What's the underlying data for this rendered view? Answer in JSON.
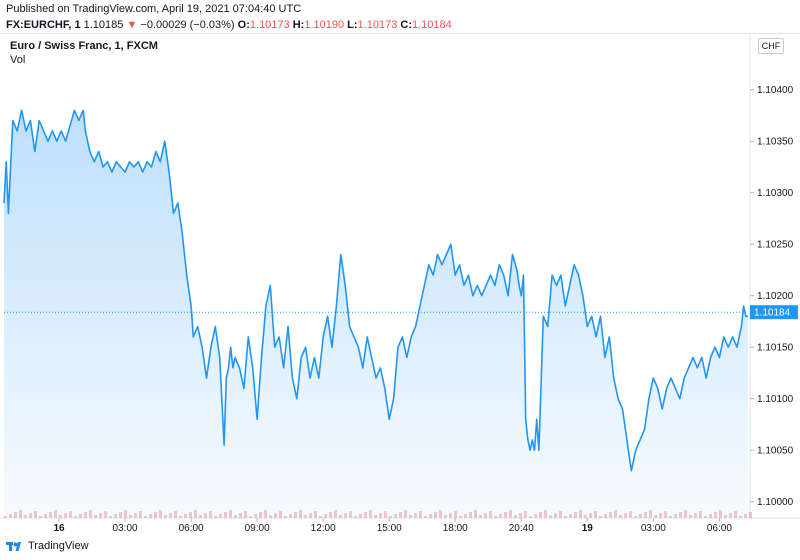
{
  "header": {
    "published": "Published on TradingView.com, April 19, 2021 07:04:40 UTC",
    "symbol": "FX:EURCHF, 1",
    "last": "1.10185",
    "change_arrow": "▼",
    "change": "−0.00029 (−0.03%)",
    "o_label": "O:",
    "o_value": "1.10173",
    "h_label": "H:",
    "h_value": "1.10190",
    "l_label": "L:",
    "l_value": "1.10173",
    "c_label": "C:",
    "c_value": "1.10184"
  },
  "legend": {
    "title": "Euro / Swiss Franc, 1, FXCM",
    "vol": "Vol",
    "currency": "CHF"
  },
  "footer": {
    "brand": "TradingView"
  },
  "colors": {
    "line": "#2196f3",
    "fill": "#bbdefb",
    "price_tag": "#2196f3",
    "volume": "#ef9a9a"
  },
  "chart_data": {
    "type": "area",
    "title": "Euro / Swiss Franc, 1, FXCM",
    "x_ticks": [
      {
        "t": 1.0,
        "label": "16"
      },
      {
        "t": 4.0,
        "label": "03:00"
      },
      {
        "t": 7.0,
        "label": "06:00"
      },
      {
        "t": 10.0,
        "label": "09:00"
      },
      {
        "t": 13.0,
        "label": "12:00"
      },
      {
        "t": 16.0,
        "label": "15:00"
      },
      {
        "t": 19.0,
        "label": "18:00"
      },
      {
        "t": 22.0,
        "label": "20:40"
      },
      {
        "t": 25.0,
        "label": "19"
      },
      {
        "t": 28.0,
        "label": "03:00"
      },
      {
        "t": 31.0,
        "label": "06:00"
      }
    ],
    "x_range": [
      -1.5,
      32.3
    ],
    "y_ticks": [
      1.1,
      1.1005,
      1.101,
      1.1015,
      1.102,
      1.1025,
      1.103,
      1.1035,
      1.104
    ],
    "ylim": [
      1.0999,
      1.10425
    ],
    "last_price": 1.10184,
    "grid": false,
    "x": [
      -1.5,
      -1.4,
      -1.3,
      -1.1,
      -0.9,
      -0.7,
      -0.5,
      -0.3,
      -0.1,
      0.1,
      0.3,
      0.5,
      0.7,
      0.9,
      1.1,
      1.3,
      1.5,
      1.7,
      1.9,
      2.1,
      2.2,
      2.4,
      2.6,
      2.8,
      3.0,
      3.2,
      3.4,
      3.6,
      3.8,
      4.0,
      4.2,
      4.4,
      4.6,
      4.8,
      5.0,
      5.2,
      5.4,
      5.6,
      5.8,
      6.0,
      6.2,
      6.4,
      6.6,
      6.8,
      7.0,
      7.1,
      7.3,
      7.5,
      7.7,
      7.9,
      8.1,
      8.3,
      8.5,
      8.6,
      8.7,
      8.8,
      8.9,
      9.0,
      9.2,
      9.4,
      9.6,
      9.8,
      10.0,
      10.2,
      10.4,
      10.6,
      10.8,
      11.0,
      11.2,
      11.4,
      11.6,
      11.8,
      12.0,
      12.2,
      12.4,
      12.6,
      12.8,
      13.0,
      13.2,
      13.4,
      13.6,
      13.8,
      14.0,
      14.2,
      14.4,
      14.6,
      14.8,
      15.0,
      15.2,
      15.4,
      15.6,
      15.8,
      16.0,
      16.2,
      16.4,
      16.6,
      16.8,
      17.0,
      17.2,
      17.4,
      17.6,
      17.8,
      18.0,
      18.2,
      18.4,
      18.6,
      18.8,
      19.0,
      19.2,
      19.4,
      19.6,
      19.8,
      20.0,
      20.2,
      20.4,
      20.6,
      20.8,
      21.0,
      21.2,
      21.4,
      21.6,
      21.8,
      21.9,
      22.0,
      22.1,
      22.2,
      22.3,
      22.4,
      22.5,
      22.6,
      22.7,
      22.8,
      23.0,
      23.2,
      23.4,
      23.6,
      23.8,
      24.0,
      24.2,
      24.4,
      24.6,
      24.8,
      25.0,
      25.2,
      25.4,
      25.6,
      25.8,
      26.0,
      26.2,
      26.4,
      26.6,
      26.8,
      27.0,
      27.2,
      27.4,
      27.6,
      27.8,
      28.0,
      28.2,
      28.4,
      28.6,
      28.8,
      29.0,
      29.2,
      29.4,
      29.6,
      29.8,
      30.0,
      30.2,
      30.4,
      30.6,
      30.8,
      31.0,
      31.2,
      31.4,
      31.6,
      31.8,
      32.0,
      32.1,
      32.2,
      32.3
    ],
    "y": [
      1.1029,
      1.1033,
      1.1028,
      1.1037,
      1.1036,
      1.1038,
      1.1036,
      1.1037,
      1.1034,
      1.1037,
      1.1036,
      1.1035,
      1.1036,
      1.1035,
      1.1036,
      1.1035,
      1.10365,
      1.1038,
      1.1037,
      1.1038,
      1.1036,
      1.1034,
      1.1033,
      1.1034,
      1.10325,
      1.1033,
      1.1032,
      1.1033,
      1.10325,
      1.1032,
      1.1033,
      1.10325,
      1.1033,
      1.1032,
      1.1033,
      1.10325,
      1.1034,
      1.1033,
      1.1035,
      1.1032,
      1.1028,
      1.1029,
      1.1026,
      1.1022,
      1.1019,
      1.1016,
      1.1017,
      1.1015,
      1.1012,
      1.1015,
      1.1017,
      1.1014,
      1.10055,
      1.1012,
      1.1013,
      1.1015,
      1.1013,
      1.1014,
      1.1013,
      1.1011,
      1.1016,
      1.1013,
      1.1008,
      1.1014,
      1.1019,
      1.1021,
      1.1015,
      1.1016,
      1.1013,
      1.1017,
      1.1012,
      1.101,
      1.1014,
      1.1015,
      1.1012,
      1.1014,
      1.1012,
      1.1016,
      1.1018,
      1.1015,
      1.1019,
      1.1024,
      1.1021,
      1.1017,
      1.1016,
      1.1015,
      1.1013,
      1.1016,
      1.1014,
      1.1012,
      1.1013,
      1.1011,
      1.1008,
      1.101,
      1.1015,
      1.1016,
      1.1014,
      1.1016,
      1.1017,
      1.1019,
      1.1021,
      1.1023,
      1.1022,
      1.1024,
      1.1023,
      1.1024,
      1.1025,
      1.1022,
      1.1023,
      1.1021,
      1.1022,
      1.102,
      1.1021,
      1.102,
      1.1021,
      1.1022,
      1.1021,
      1.1023,
      1.1022,
      1.102,
      1.1024,
      1.10225,
      1.1021,
      1.102,
      1.1022,
      1.1008,
      1.1006,
      1.1005,
      1.1006,
      1.1005,
      1.1008,
      1.1005,
      1.1018,
      1.1017,
      1.1022,
      1.1021,
      1.1022,
      1.1019,
      1.1021,
      1.1023,
      1.1022,
      1.102,
      1.1017,
      1.1018,
      1.1016,
      1.1018,
      1.1014,
      1.1016,
      1.1012,
      1.101,
      1.1009,
      1.1006,
      1.1003,
      1.1005,
      1.1006,
      1.1007,
      1.101,
      1.1012,
      1.1011,
      1.1009,
      1.1011,
      1.1012,
      1.1011,
      1.101,
      1.1012,
      1.1013,
      1.1014,
      1.1013,
      1.1014,
      1.1012,
      1.1014,
      1.1015,
      1.1014,
      1.1016,
      1.1015,
      1.1016,
      1.1015,
      1.1017,
      1.1019,
      1.1018,
      1.1018
    ]
  }
}
